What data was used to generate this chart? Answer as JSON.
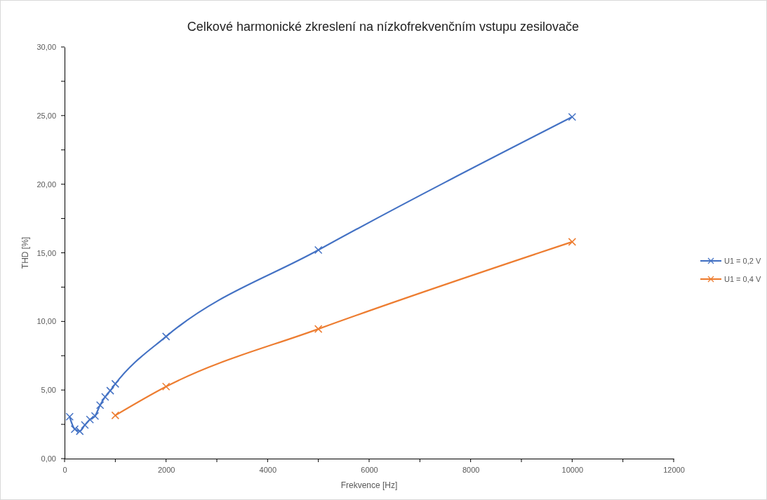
{
  "chart_data": {
    "type": "line",
    "title": "Celkové harmonické zkreslení na nízkofrekvenčním vstupu zesilovače",
    "xlabel": "Frekvence [Hz]",
    "ylabel": "THD [%]",
    "xlim": [
      0,
      12000
    ],
    "xticks": [
      0,
      2000,
      4000,
      6000,
      8000,
      10000,
      12000
    ],
    "ylim": [
      0,
      30
    ],
    "yticks": [
      {
        "value": 0,
        "label": "0,00"
      },
      {
        "value": 5,
        "label": "5,00"
      },
      {
        "value": 10,
        "label": "10,00"
      },
      {
        "value": 15,
        "label": "15,00"
      },
      {
        "value": 20,
        "label": "20,00"
      },
      {
        "value": 25,
        "label": "25,00"
      },
      {
        "value": 30,
        "label": "30,00"
      }
    ],
    "grid": false,
    "legend": "right",
    "marker": "cross",
    "line_style": "solid",
    "series": [
      {
        "name": "U1 = 0,2 V",
        "color": "#4472c4",
        "x": [
          100,
          200,
          300,
          400,
          500,
          600,
          700,
          800,
          900,
          1000,
          2000,
          5000,
          10000
        ],
        "values": [
          3.05,
          2.15,
          2.0,
          2.45,
          2.85,
          3.1,
          3.9,
          4.5,
          4.95,
          5.45,
          8.9,
          15.2,
          24.9
        ]
      },
      {
        "name": "U1 = 0,4 V",
        "color": "#ed7d31",
        "x": [
          1000,
          2000,
          5000,
          10000
        ],
        "values": [
          3.15,
          5.25,
          9.45,
          15.8
        ]
      }
    ]
  }
}
